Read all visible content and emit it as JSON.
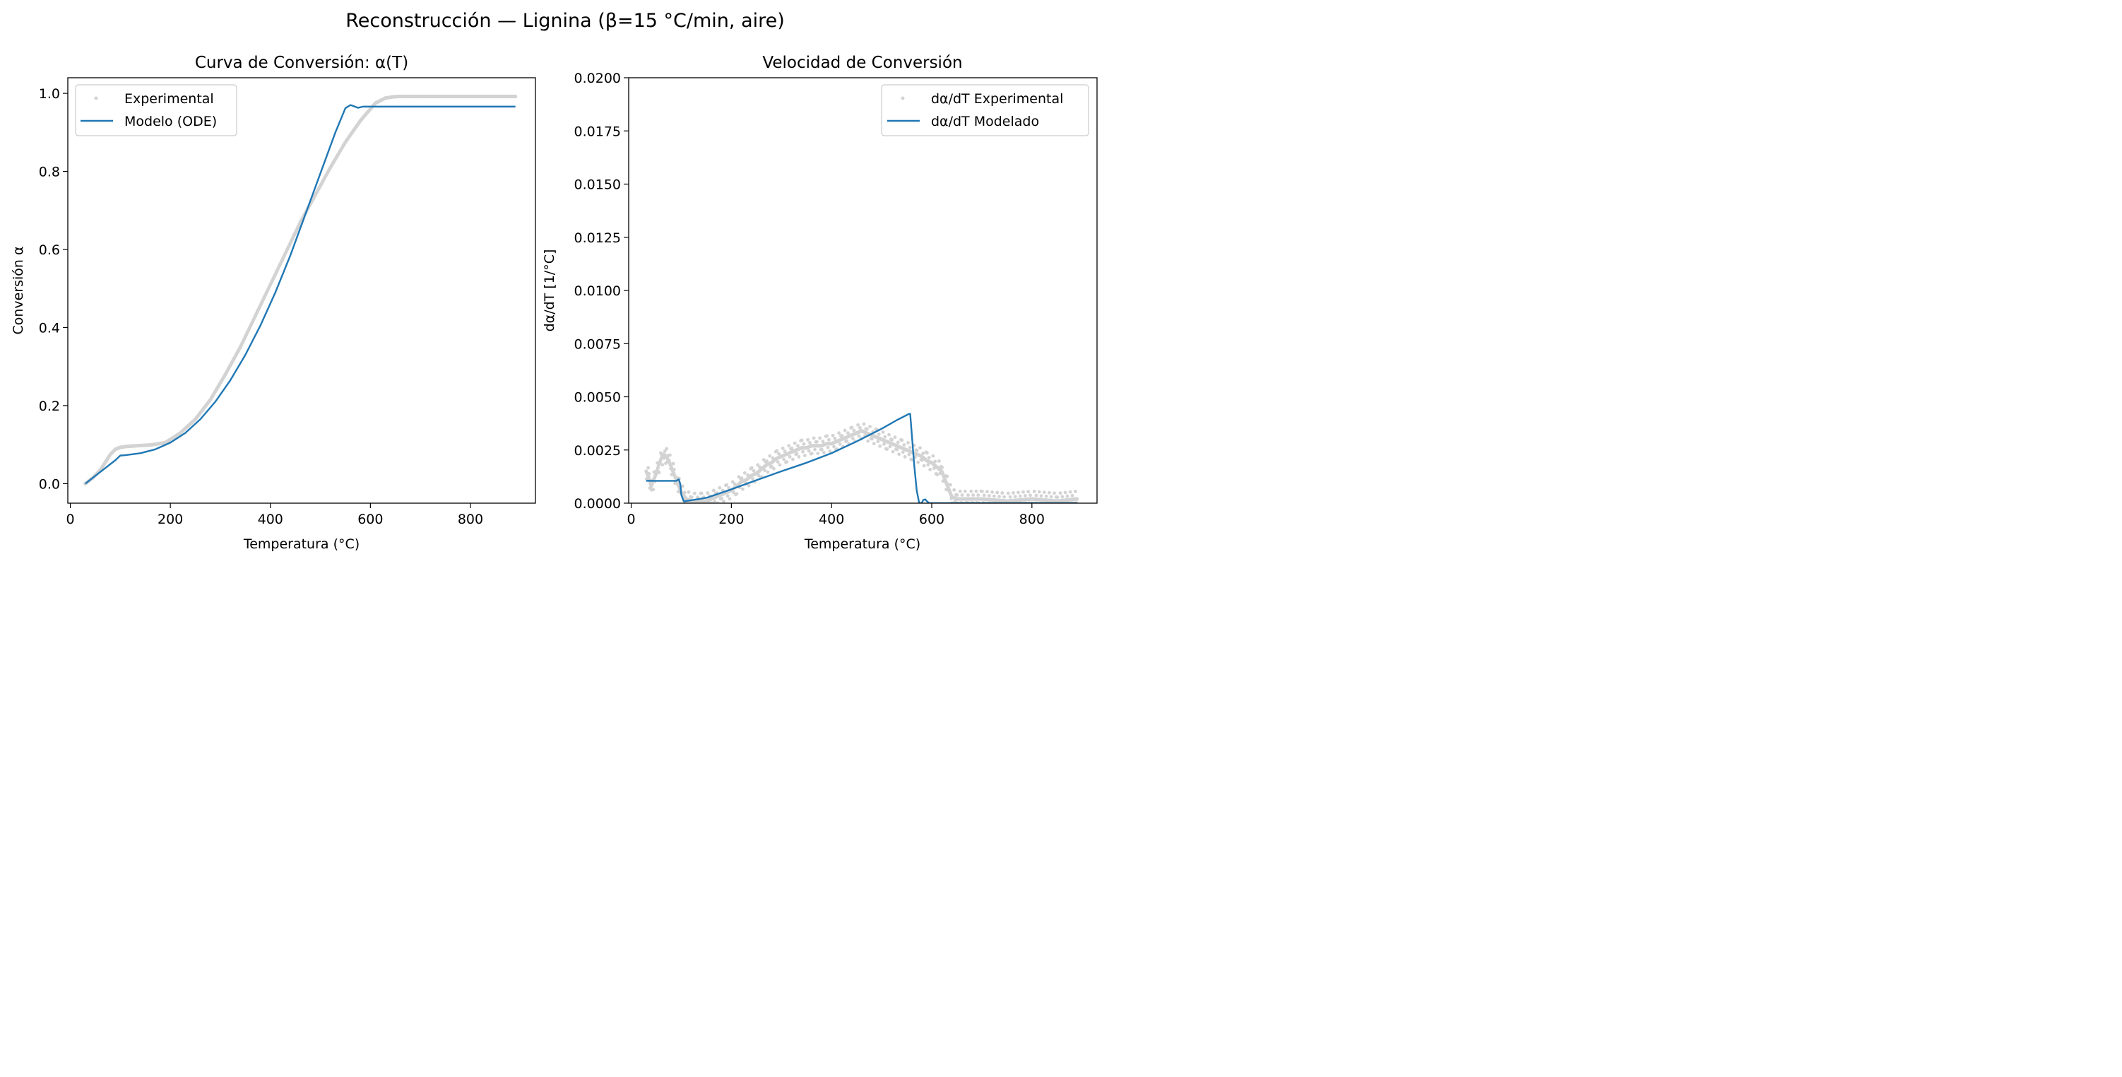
{
  "figure": {
    "suptitle": "Reconstrucción — Lignina (β=15 °C/min, aire)"
  },
  "colors": {
    "experimental": "#d3d3d3",
    "model": "#1f77b4"
  },
  "chart_data": [
    {
      "type": "line",
      "title": "Curva de Conversión: α(T)",
      "xlabel": "Temperatura (°C)",
      "ylabel": "Conversión α",
      "xlim": [
        -5,
        930
      ],
      "ylim": [
        -0.05,
        1.04
      ],
      "xticks": [
        0,
        200,
        400,
        600,
        800
      ],
      "xtick_labels": [
        "0",
        "200",
        "400",
        "600",
        "800"
      ],
      "yticks": [
        0.0,
        0.2,
        0.4,
        0.6,
        0.8,
        1.0
      ],
      "ytick_labels": [
        "0.0",
        "0.2",
        "0.4",
        "0.6",
        "0.8",
        "1.0"
      ],
      "grid": false,
      "legend": {
        "placement": "upper left",
        "entries": [
          "Experimental",
          "Modelo (ODE)"
        ]
      },
      "series": [
        {
          "name": "Experimental",
          "style": "points",
          "x": [
            30,
            45,
            60,
            70,
            80,
            90,
            100,
            110,
            130,
            160,
            190,
            220,
            250,
            280,
            310,
            340,
            370,
            400,
            430,
            460,
            490,
            520,
            550,
            580,
            610,
            630,
            645,
            655,
            700,
            800,
            890
          ],
          "y": [
            0.0,
            0.015,
            0.035,
            0.055,
            0.075,
            0.088,
            0.093,
            0.095,
            0.097,
            0.099,
            0.105,
            0.13,
            0.165,
            0.215,
            0.28,
            0.35,
            0.43,
            0.51,
            0.59,
            0.67,
            0.74,
            0.81,
            0.875,
            0.93,
            0.975,
            0.988,
            0.991,
            0.992,
            0.992,
            0.992,
            0.992
          ]
        },
        {
          "name": "Modelo (ODE)",
          "style": "line",
          "x": [
            30,
            50,
            70,
            90,
            100,
            110,
            140,
            170,
            200,
            230,
            260,
            290,
            320,
            350,
            380,
            410,
            440,
            470,
            500,
            530,
            550,
            560,
            565,
            575,
            585,
            600,
            700,
            800,
            890
          ],
          "y": [
            0.0,
            0.02,
            0.04,
            0.06,
            0.072,
            0.073,
            0.078,
            0.088,
            0.105,
            0.13,
            0.165,
            0.21,
            0.265,
            0.33,
            0.405,
            0.49,
            0.585,
            0.69,
            0.795,
            0.9,
            0.962,
            0.97,
            0.968,
            0.963,
            0.966,
            0.966,
            0.966,
            0.966,
            0.966
          ]
        }
      ]
    },
    {
      "type": "line",
      "title": "Velocidad de Conversión",
      "xlabel": "Temperatura (°C)",
      "ylabel": "dα/dT [1/°C]",
      "xlim": [
        -5,
        930
      ],
      "ylim": [
        0.0,
        0.02
      ],
      "xticks": [
        0,
        200,
        400,
        600,
        800
      ],
      "xtick_labels": [
        "0",
        "200",
        "400",
        "600",
        "800"
      ],
      "yticks": [
        0.0,
        0.0025,
        0.005,
        0.0075,
        0.01,
        0.0125,
        0.015,
        0.0175,
        0.02
      ],
      "ytick_labels": [
        "0.0000",
        "0.0025",
        "0.0050",
        "0.0075",
        "0.0100",
        "0.0125",
        "0.0150",
        "0.0175",
        "0.0200"
      ],
      "grid": false,
      "legend": {
        "placement": "upper right",
        "entries": [
          "dα/dT Experimental",
          "dα/dT Modelado"
        ]
      },
      "series": [
        {
          "name": "dα/dT Experimental",
          "style": "points",
          "x": [
            30,
            35,
            40,
            45,
            50,
            55,
            60,
            65,
            70,
            75,
            80,
            85,
            90,
            95,
            100,
            110,
            120,
            130,
            140,
            150,
            160,
            170,
            180,
            190,
            200,
            210,
            220,
            230,
            240,
            250,
            260,
            270,
            280,
            290,
            300,
            310,
            320,
            330,
            340,
            350,
            360,
            370,
            380,
            390,
            400,
            410,
            420,
            430,
            440,
            450,
            460,
            470,
            480,
            490,
            500,
            510,
            520,
            530,
            540,
            550,
            560,
            570,
            580,
            590,
            600,
            610,
            620,
            625,
            630,
            635,
            640,
            650,
            670,
            700,
            750,
            800,
            850,
            890
          ],
          "y": [
            0.0015,
            0.0012,
            0.0008,
            0.0011,
            0.0014,
            0.0018,
            0.0021,
            0.0023,
            0.0022,
            0.002,
            0.0017,
            0.0014,
            0.0011,
            0.0008,
            0.0005,
            0.0002,
            0.0001,
            0.0001,
            0.0001,
            0.0001,
            0.0002,
            0.0003,
            0.0004,
            0.0005,
            0.0006,
            0.0008,
            0.001,
            0.0011,
            0.0013,
            0.0014,
            0.0016,
            0.0018,
            0.0019,
            0.0021,
            0.0022,
            0.0023,
            0.0024,
            0.0025,
            0.0026,
            0.0026,
            0.0027,
            0.0027,
            0.0027,
            0.0028,
            0.0028,
            0.0029,
            0.003,
            0.0031,
            0.0032,
            0.0033,
            0.0034,
            0.0033,
            0.0032,
            0.0031,
            0.003,
            0.0029,
            0.0028,
            0.0027,
            0.0026,
            0.0025,
            0.0024,
            0.0023,
            0.0022,
            0.002,
            0.0019,
            0.0017,
            0.0015,
            0.0012,
            0.0009,
            0.0006,
            0.0003,
            0.0002,
            0.0002,
            0.0002,
            0.0001,
            0.0002,
            0.0001,
            0.0002
          ]
        },
        {
          "name": "dα/dT Modelado",
          "style": "line",
          "x": [
            30,
            50,
            70,
            90,
            95,
            98,
            100,
            105,
            150,
            200,
            250,
            300,
            350,
            400,
            450,
            500,
            530,
            555,
            557,
            565,
            570,
            575,
            580,
            583,
            587,
            590,
            595,
            600,
            700,
            800,
            890
          ],
          "y": [
            0.00105,
            0.00105,
            0.00105,
            0.00105,
            0.00112,
            0.0009,
            0.0004,
            8e-05,
            0.00025,
            0.00065,
            0.00108,
            0.0015,
            0.0019,
            0.00235,
            0.0029,
            0.0035,
            0.0039,
            0.0042,
            0.0042,
            0.0018,
            0.0006,
            0.0,
            0.0,
            0.00015,
            0.00018,
            0.0001,
            0.0,
            0.0,
            0.0,
            0.0,
            0.0
          ]
        }
      ]
    }
  ]
}
